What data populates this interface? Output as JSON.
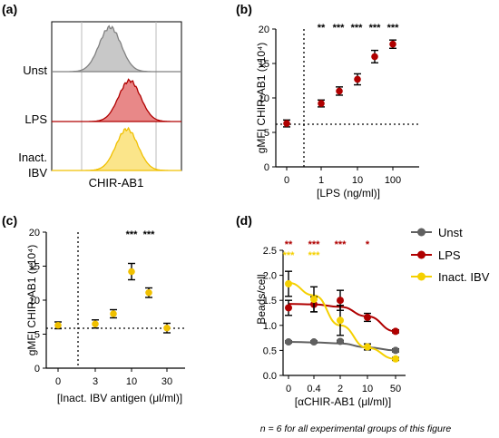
{
  "footnote": "n = 6 for all experimental groups of this figure",
  "chart_data": [
    {
      "panel": "(a)",
      "type": "area",
      "xlabel": "CHIR-AB1",
      "series": [
        {
          "name": "Unst",
          "color": "#808080",
          "fill": "#c8c8c8",
          "peak": 0.45,
          "height": 1.0
        },
        {
          "name": "LPS",
          "color": "#b00000",
          "fill": "#e88888",
          "peak": 0.6,
          "height": 0.92
        },
        {
          "name": "Inact.",
          "name2": "IBV",
          "color": "#f0c000",
          "fill": "#fbe58a",
          "peak": 0.58,
          "height": 0.95
        }
      ]
    },
    {
      "panel": "(b)",
      "type": "scatter",
      "ylabel": "gMFI CHIR-AB1 (x10⁴)",
      "xlabel": "[LPS (ng/ml)]",
      "ylim": [
        0,
        20
      ],
      "yticks": [
        "0",
        "5",
        "10",
        "15",
        "20"
      ],
      "xticks": [
        "0",
        "1",
        "10",
        "100"
      ],
      "x": [
        0,
        1,
        3,
        10,
        30,
        100
      ],
      "values": [
        6.3,
        9.2,
        11.0,
        12.7,
        16.0,
        17.8
      ],
      "errors": [
        0.5,
        0.5,
        0.6,
        0.8,
        0.9,
        0.6
      ],
      "color": "#b00000",
      "baseline": 6.3,
      "significance": [
        "**",
        "***",
        "***",
        "***",
        "***"
      ]
    },
    {
      "panel": "(c)",
      "type": "scatter",
      "ylabel": "gMFI CHIR-AB1 (x10⁴)",
      "xlabel": "[Inact. IBV antigen (μl/ml)]",
      "ylim": [
        0,
        20
      ],
      "yticks": [
        "0",
        "5",
        "10",
        "15",
        "20"
      ],
      "xticks": [
        "0",
        "3",
        "10",
        "30"
      ],
      "x": [
        0,
        3,
        5,
        10,
        15,
        30
      ],
      "values": [
        6.3,
        6.5,
        8.0,
        14.2,
        11.1,
        5.9
      ],
      "errors": [
        0.5,
        0.6,
        0.6,
        1.2,
        0.7,
        0.7
      ],
      "color": "#f0c000",
      "baseline": 6.3,
      "significance": [
        "***",
        "***"
      ]
    },
    {
      "panel": "(d)",
      "type": "line",
      "ylabel": "Beads/cell",
      "xlabel": "[αCHIR-AB1 (μl/ml)]",
      "ylim": [
        0,
        2.5
      ],
      "yticks": [
        "0.0",
        "0.5",
        "1.0",
        "1.5",
        "2.0",
        "2.5"
      ],
      "categories": [
        "0",
        "0.4",
        "2",
        "10",
        "50"
      ],
      "series": [
        {
          "name": "Unst",
          "color": "#606060",
          "values": [
            0.67,
            0.67,
            0.68,
            0.57,
            0.5
          ],
          "errors": [
            0.02,
            0.02,
            0.02,
            0.06,
            0.03
          ],
          "curve": [
            0.67,
            0.66,
            0.64,
            0.56,
            0.5
          ]
        },
        {
          "name": "LPS",
          "color": "#b00000",
          "values": [
            1.35,
            1.42,
            1.5,
            1.16,
            0.88
          ],
          "errors": [
            0.15,
            0.15,
            0.2,
            0.08,
            0.03
          ],
          "curve": [
            1.43,
            1.42,
            1.37,
            1.18,
            0.88
          ]
        },
        {
          "name": "Inact. IBV",
          "color": "#f5d000",
          "values": [
            1.83,
            1.52,
            1.1,
            0.57,
            0.33
          ],
          "errors": [
            0.25,
            0.25,
            0.3,
            0.06,
            0.03
          ],
          "curve": [
            1.85,
            1.6,
            1.0,
            0.55,
            0.33
          ]
        }
      ],
      "significance": {
        "LPS": [
          "**",
          "***",
          "***",
          "*"
        ],
        "Inact. IBV": [
          "***",
          "***"
        ]
      }
    }
  ]
}
